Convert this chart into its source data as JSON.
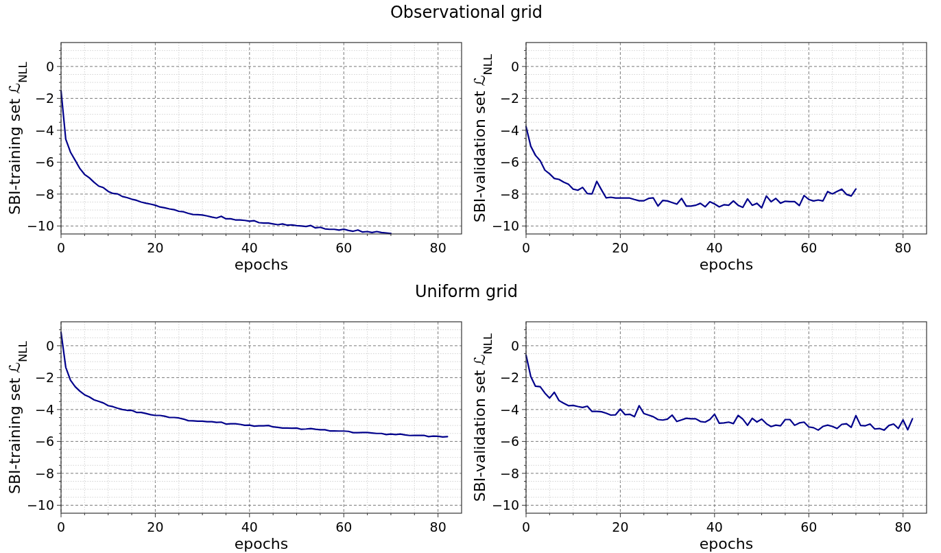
{
  "chart_data": [
    {
      "type": "line",
      "title": "Observational grid",
      "xlabel": "epochs",
      "ylabel": "SBI-training set ℒ$_{NLL}$",
      "xlim": [
        0,
        85
      ],
      "ylim": [
        -10.5,
        1.5
      ],
      "grid": true,
      "line_style": "solid",
      "xticks": [
        0,
        20,
        40,
        60,
        80,
        {
          "value": 5,
          "label": null
        },
        {
          "value": 10,
          "label": null
        },
        {
          "value": 15,
          "label": null
        },
        {
          "value": 25,
          "label": null
        },
        {
          "value": 30,
          "label": null
        },
        {
          "value": 35,
          "label": null
        },
        {
          "value": 45,
          "label": null
        },
        {
          "value": 50,
          "label": null
        },
        {
          "value": 55,
          "label": null
        },
        {
          "value": 65,
          "label": null
        },
        {
          "value": 70,
          "label": null
        },
        {
          "value": 75,
          "label": null
        }
      ],
      "yticks": [
        -10,
        -8,
        -6,
        -4,
        -2,
        0,
        {
          "value": -9.5,
          "label": null
        },
        {
          "value": -9,
          "label": null
        },
        {
          "value": -8.5,
          "label": null
        },
        {
          "value": -7.5,
          "label": null
        },
        {
          "value": -7,
          "label": null
        },
        {
          "value": -6.5,
          "label": null
        },
        {
          "value": -5.5,
          "label": null
        },
        {
          "value": -5,
          "label": null
        },
        {
          "value": -4.5,
          "label": null
        },
        {
          "value": -3.5,
          "label": null
        },
        {
          "value": -3,
          "label": null
        },
        {
          "value": -2.5,
          "label": null
        },
        {
          "value": -1.5,
          "label": null
        },
        {
          "value": -1,
          "label": null
        },
        {
          "value": -0.5,
          "label": null
        },
        {
          "value": 0.5,
          "label": null
        },
        {
          "value": 1,
          "label": null
        }
      ],
      "series": [
        {
          "color": "#00008b",
          "x": [
            0,
            1,
            2,
            3,
            4,
            5,
            6,
            7,
            8,
            9,
            10,
            11,
            12,
            13,
            14,
            15,
            16,
            17,
            18,
            19,
            20,
            21,
            22,
            23,
            24,
            25,
            26,
            27,
            28,
            29,
            30,
            31,
            32,
            33,
            34,
            35,
            36,
            37,
            38,
            39,
            40,
            41,
            42,
            43,
            44,
            45,
            46,
            47,
            48,
            49,
            50,
            51,
            52,
            53,
            54,
            55,
            56,
            57,
            58,
            59,
            60,
            61,
            62,
            63,
            64,
            65,
            66,
            67,
            68,
            69,
            70
          ],
          "values": [
            -1.52,
            -4.56,
            -5.37,
            -5.88,
            -6.4,
            -6.77,
            -6.98,
            -7.26,
            -7.5,
            -7.6,
            -7.83,
            -7.96,
            -7.99,
            -8.15,
            -8.22,
            -8.32,
            -8.39,
            -8.5,
            -8.57,
            -8.63,
            -8.7,
            -8.81,
            -8.86,
            -8.93,
            -8.98,
            -9.08,
            -9.11,
            -9.21,
            -9.28,
            -9.29,
            -9.31,
            -9.37,
            -9.44,
            -9.5,
            -9.39,
            -9.55,
            -9.55,
            -9.62,
            -9.62,
            -9.65,
            -9.7,
            -9.67,
            -9.79,
            -9.82,
            -9.82,
            -9.87,
            -9.92,
            -9.87,
            -9.95,
            -9.93,
            -9.98,
            -10.0,
            -10.03,
            -9.97,
            -10.12,
            -10.08,
            -10.18,
            -10.21,
            -10.21,
            -10.26,
            -10.2,
            -10.28,
            -10.33,
            -10.25,
            -10.38,
            -10.35,
            -10.41,
            -10.35,
            -10.41,
            -10.44,
            -10.47
          ]
        }
      ]
    },
    {
      "type": "line",
      "xlabel": "epochs",
      "ylabel": "SBI-validation set ℒ$_{NLL}$",
      "xlim": [
        0,
        85
      ],
      "ylim": [
        -10.5,
        1.5
      ],
      "grid": true,
      "line_style": "solid",
      "xticks": [
        0,
        20,
        40,
        60,
        80,
        {
          "value": 5,
          "label": null
        },
        {
          "value": 10,
          "label": null
        },
        {
          "value": 15,
          "label": null
        },
        {
          "value": 25,
          "label": null
        },
        {
          "value": 30,
          "label": null
        },
        {
          "value": 35,
          "label": null
        },
        {
          "value": 45,
          "label": null
        },
        {
          "value": 50,
          "label": null
        },
        {
          "value": 55,
          "label": null
        },
        {
          "value": 65,
          "label": null
        },
        {
          "value": 70,
          "label": null
        },
        {
          "value": 75,
          "label": null
        }
      ],
      "yticks": [
        -10,
        -8,
        -6,
        -4,
        -2,
        0,
        {
          "value": -9.5,
          "label": null
        },
        {
          "value": -9,
          "label": null
        },
        {
          "value": -8.5,
          "label": null
        },
        {
          "value": -7.5,
          "label": null
        },
        {
          "value": -7,
          "label": null
        },
        {
          "value": -6.5,
          "label": null
        },
        {
          "value": -5.5,
          "label": null
        },
        {
          "value": -5,
          "label": null
        },
        {
          "value": -4.5,
          "label": null
        },
        {
          "value": -3.5,
          "label": null
        },
        {
          "value": -3,
          "label": null
        },
        {
          "value": -2.5,
          "label": null
        },
        {
          "value": -1.5,
          "label": null
        },
        {
          "value": -1,
          "label": null
        },
        {
          "value": -0.5,
          "label": null
        },
        {
          "value": 0.5,
          "label": null
        },
        {
          "value": 1,
          "label": null
        }
      ],
      "series": [
        {
          "color": "#00008b",
          "x": [
            0,
            1,
            2,
            3,
            4,
            5,
            6,
            7,
            8,
            9,
            10,
            11,
            12,
            13,
            14,
            15,
            16,
            17,
            18,
            19,
            20,
            21,
            22,
            23,
            24,
            25,
            26,
            27,
            28,
            29,
            30,
            31,
            32,
            33,
            34,
            35,
            36,
            37,
            38,
            39,
            40,
            41,
            42,
            43,
            44,
            45,
            46,
            47,
            48,
            49,
            50,
            51,
            52,
            53,
            54,
            55,
            56,
            57,
            58,
            59,
            60,
            61,
            62,
            63,
            64,
            65,
            66,
            67,
            68,
            69,
            70
          ],
          "values": [
            -3.77,
            -5.0,
            -5.57,
            -5.91,
            -6.5,
            -6.73,
            -7.02,
            -7.08,
            -7.25,
            -7.38,
            -7.69,
            -7.76,
            -7.58,
            -7.97,
            -7.99,
            -7.2,
            -7.73,
            -8.24,
            -8.2,
            -8.25,
            -8.25,
            -8.25,
            -8.25,
            -8.34,
            -8.42,
            -8.42,
            -8.27,
            -8.24,
            -8.75,
            -8.4,
            -8.43,
            -8.53,
            -8.63,
            -8.27,
            -8.75,
            -8.75,
            -8.7,
            -8.58,
            -8.8,
            -8.48,
            -8.62,
            -8.8,
            -8.67,
            -8.7,
            -8.43,
            -8.7,
            -8.83,
            -8.3,
            -8.7,
            -8.58,
            -8.86,
            -8.12,
            -8.48,
            -8.27,
            -8.57,
            -8.45,
            -8.47,
            -8.47,
            -8.72,
            -8.09,
            -8.34,
            -8.43,
            -8.37,
            -8.43,
            -7.84,
            -7.99,
            -7.83,
            -7.69,
            -8.02,
            -8.12,
            -7.68
          ]
        }
      ]
    },
    {
      "type": "line",
      "title": "Uniform grid",
      "xlabel": "epochs",
      "ylabel": "SBI-training set ℒ$_{NLL}$",
      "xlim": [
        0,
        85
      ],
      "ylim": [
        -10.5,
        1.5
      ],
      "grid": true,
      "line_style": "solid",
      "xticks": [
        0,
        20,
        40,
        60,
        80,
        {
          "value": 5,
          "label": null
        },
        {
          "value": 10,
          "label": null
        },
        {
          "value": 15,
          "label": null
        },
        {
          "value": 25,
          "label": null
        },
        {
          "value": 30,
          "label": null
        },
        {
          "value": 35,
          "label": null
        },
        {
          "value": 45,
          "label": null
        },
        {
          "value": 50,
          "label": null
        },
        {
          "value": 55,
          "label": null
        },
        {
          "value": 65,
          "label": null
        },
        {
          "value": 70,
          "label": null
        },
        {
          "value": 75,
          "label": null
        }
      ],
      "yticks": [
        -10,
        -8,
        -6,
        -4,
        -2,
        0,
        {
          "value": -9.5,
          "label": null
        },
        {
          "value": -9,
          "label": null
        },
        {
          "value": -8.5,
          "label": null
        },
        {
          "value": -7.5,
          "label": null
        },
        {
          "value": -7,
          "label": null
        },
        {
          "value": -6.5,
          "label": null
        },
        {
          "value": -5.5,
          "label": null
        },
        {
          "value": -5,
          "label": null
        },
        {
          "value": -4.5,
          "label": null
        },
        {
          "value": -3.5,
          "label": null
        },
        {
          "value": -3,
          "label": null
        },
        {
          "value": -2.5,
          "label": null
        },
        {
          "value": -1.5,
          "label": null
        },
        {
          "value": -1,
          "label": null
        },
        {
          "value": -0.5,
          "label": null
        },
        {
          "value": 0.5,
          "label": null
        },
        {
          "value": 1,
          "label": null
        }
      ],
      "series": [
        {
          "color": "#00008b",
          "x": [
            0,
            1,
            2,
            3,
            4,
            5,
            6,
            7,
            8,
            9,
            10,
            11,
            12,
            13,
            14,
            15,
            16,
            17,
            18,
            19,
            20,
            21,
            22,
            23,
            24,
            25,
            26,
            27,
            28,
            29,
            30,
            31,
            32,
            33,
            34,
            35,
            36,
            37,
            38,
            39,
            40,
            41,
            42,
            43,
            44,
            45,
            46,
            47,
            48,
            49,
            50,
            51,
            52,
            53,
            54,
            55,
            56,
            57,
            58,
            59,
            60,
            61,
            62,
            63,
            64,
            65,
            66,
            67,
            68,
            69,
            70,
            71,
            72,
            73,
            74,
            75,
            76,
            77,
            78,
            79,
            80,
            81,
            82
          ],
          "values": [
            0.84,
            -1.35,
            -2.16,
            -2.57,
            -2.85,
            -3.08,
            -3.21,
            -3.39,
            -3.49,
            -3.59,
            -3.76,
            -3.82,
            -3.92,
            -4.0,
            -4.05,
            -4.05,
            -4.18,
            -4.18,
            -4.25,
            -4.32,
            -4.37,
            -4.37,
            -4.42,
            -4.5,
            -4.5,
            -4.53,
            -4.6,
            -4.7,
            -4.71,
            -4.73,
            -4.73,
            -4.76,
            -4.76,
            -4.81,
            -4.79,
            -4.91,
            -4.89,
            -4.89,
            -4.93,
            -4.99,
            -4.98,
            -5.04,
            -5.02,
            -5.02,
            -5.0,
            -5.09,
            -5.12,
            -5.16,
            -5.16,
            -5.17,
            -5.16,
            -5.24,
            -5.22,
            -5.19,
            -5.24,
            -5.27,
            -5.27,
            -5.34,
            -5.34,
            -5.35,
            -5.35,
            -5.37,
            -5.45,
            -5.45,
            -5.44,
            -5.44,
            -5.47,
            -5.5,
            -5.5,
            -5.57,
            -5.54,
            -5.57,
            -5.54,
            -5.59,
            -5.63,
            -5.62,
            -5.62,
            -5.62,
            -5.7,
            -5.67,
            -5.68,
            -5.72,
            -5.7
          ]
        }
      ]
    },
    {
      "type": "line",
      "xlabel": "epochs",
      "ylabel": "SBI-validation set ℒ$_{NLL}$",
      "xlim": [
        0,
        85
      ],
      "ylim": [
        -10.5,
        1.5
      ],
      "grid": true,
      "line_style": "solid",
      "xticks": [
        0,
        20,
        40,
        60,
        80,
        {
          "value": 5,
          "label": null
        },
        {
          "value": 10,
          "label": null
        },
        {
          "value": 15,
          "label": null
        },
        {
          "value": 25,
          "label": null
        },
        {
          "value": 30,
          "label": null
        },
        {
          "value": 35,
          "label": null
        },
        {
          "value": 45,
          "label": null
        },
        {
          "value": 50,
          "label": null
        },
        {
          "value": 55,
          "label": null
        },
        {
          "value": 65,
          "label": null
        },
        {
          "value": 70,
          "label": null
        },
        {
          "value": 75,
          "label": null
        }
      ],
      "yticks": [
        -10,
        -8,
        -6,
        -4,
        -2,
        0,
        {
          "value": -9.5,
          "label": null
        },
        {
          "value": -9,
          "label": null
        },
        {
          "value": -8.5,
          "label": null
        },
        {
          "value": -7.5,
          "label": null
        },
        {
          "value": -7,
          "label": null
        },
        {
          "value": -6.5,
          "label": null
        },
        {
          "value": -5.5,
          "label": null
        },
        {
          "value": -5,
          "label": null
        },
        {
          "value": -4.5,
          "label": null
        },
        {
          "value": -3.5,
          "label": null
        },
        {
          "value": -3,
          "label": null
        },
        {
          "value": -2.5,
          "label": null
        },
        {
          "value": -1.5,
          "label": null
        },
        {
          "value": -1,
          "label": null
        },
        {
          "value": -0.5,
          "label": null
        },
        {
          "value": 0.5,
          "label": null
        },
        {
          "value": 1,
          "label": null
        }
      ],
      "series": [
        {
          "color": "#00008b",
          "x": [
            0,
            1,
            2,
            3,
            4,
            5,
            6,
            7,
            8,
            9,
            10,
            11,
            12,
            13,
            14,
            15,
            16,
            17,
            18,
            19,
            20,
            21,
            22,
            23,
            24,
            25,
            26,
            27,
            28,
            29,
            30,
            31,
            32,
            33,
            34,
            35,
            36,
            37,
            38,
            39,
            40,
            41,
            42,
            43,
            44,
            45,
            46,
            47,
            48,
            49,
            50,
            51,
            52,
            53,
            54,
            55,
            56,
            57,
            58,
            59,
            60,
            61,
            62,
            63,
            64,
            65,
            66,
            67,
            68,
            69,
            70,
            71,
            72,
            73,
            74,
            75,
            76,
            77,
            78,
            79,
            80,
            81,
            82
          ],
          "values": [
            -0.59,
            -1.93,
            -2.54,
            -2.57,
            -2.97,
            -3.28,
            -2.92,
            -3.44,
            -3.61,
            -3.76,
            -3.74,
            -3.81,
            -3.87,
            -3.79,
            -4.12,
            -4.12,
            -4.14,
            -4.23,
            -4.35,
            -4.33,
            -3.97,
            -4.32,
            -4.3,
            -4.45,
            -3.76,
            -4.25,
            -4.35,
            -4.45,
            -4.63,
            -4.66,
            -4.6,
            -4.35,
            -4.75,
            -4.65,
            -4.55,
            -4.58,
            -4.58,
            -4.75,
            -4.79,
            -4.63,
            -4.3,
            -4.86,
            -4.84,
            -4.79,
            -4.88,
            -4.37,
            -4.6,
            -4.99,
            -4.55,
            -4.78,
            -4.6,
            -4.89,
            -5.07,
            -4.98,
            -5.02,
            -4.63,
            -4.63,
            -4.99,
            -4.84,
            -4.79,
            -5.09,
            -5.14,
            -5.29,
            -5.06,
            -4.98,
            -5.06,
            -5.19,
            -4.93,
            -4.89,
            -5.12,
            -4.38,
            -5.0,
            -5.02,
            -4.91,
            -5.22,
            -5.19,
            -5.29,
            -5.0,
            -4.91,
            -5.19,
            -4.65,
            -5.27,
            -4.58
          ]
        }
      ]
    }
  ]
}
